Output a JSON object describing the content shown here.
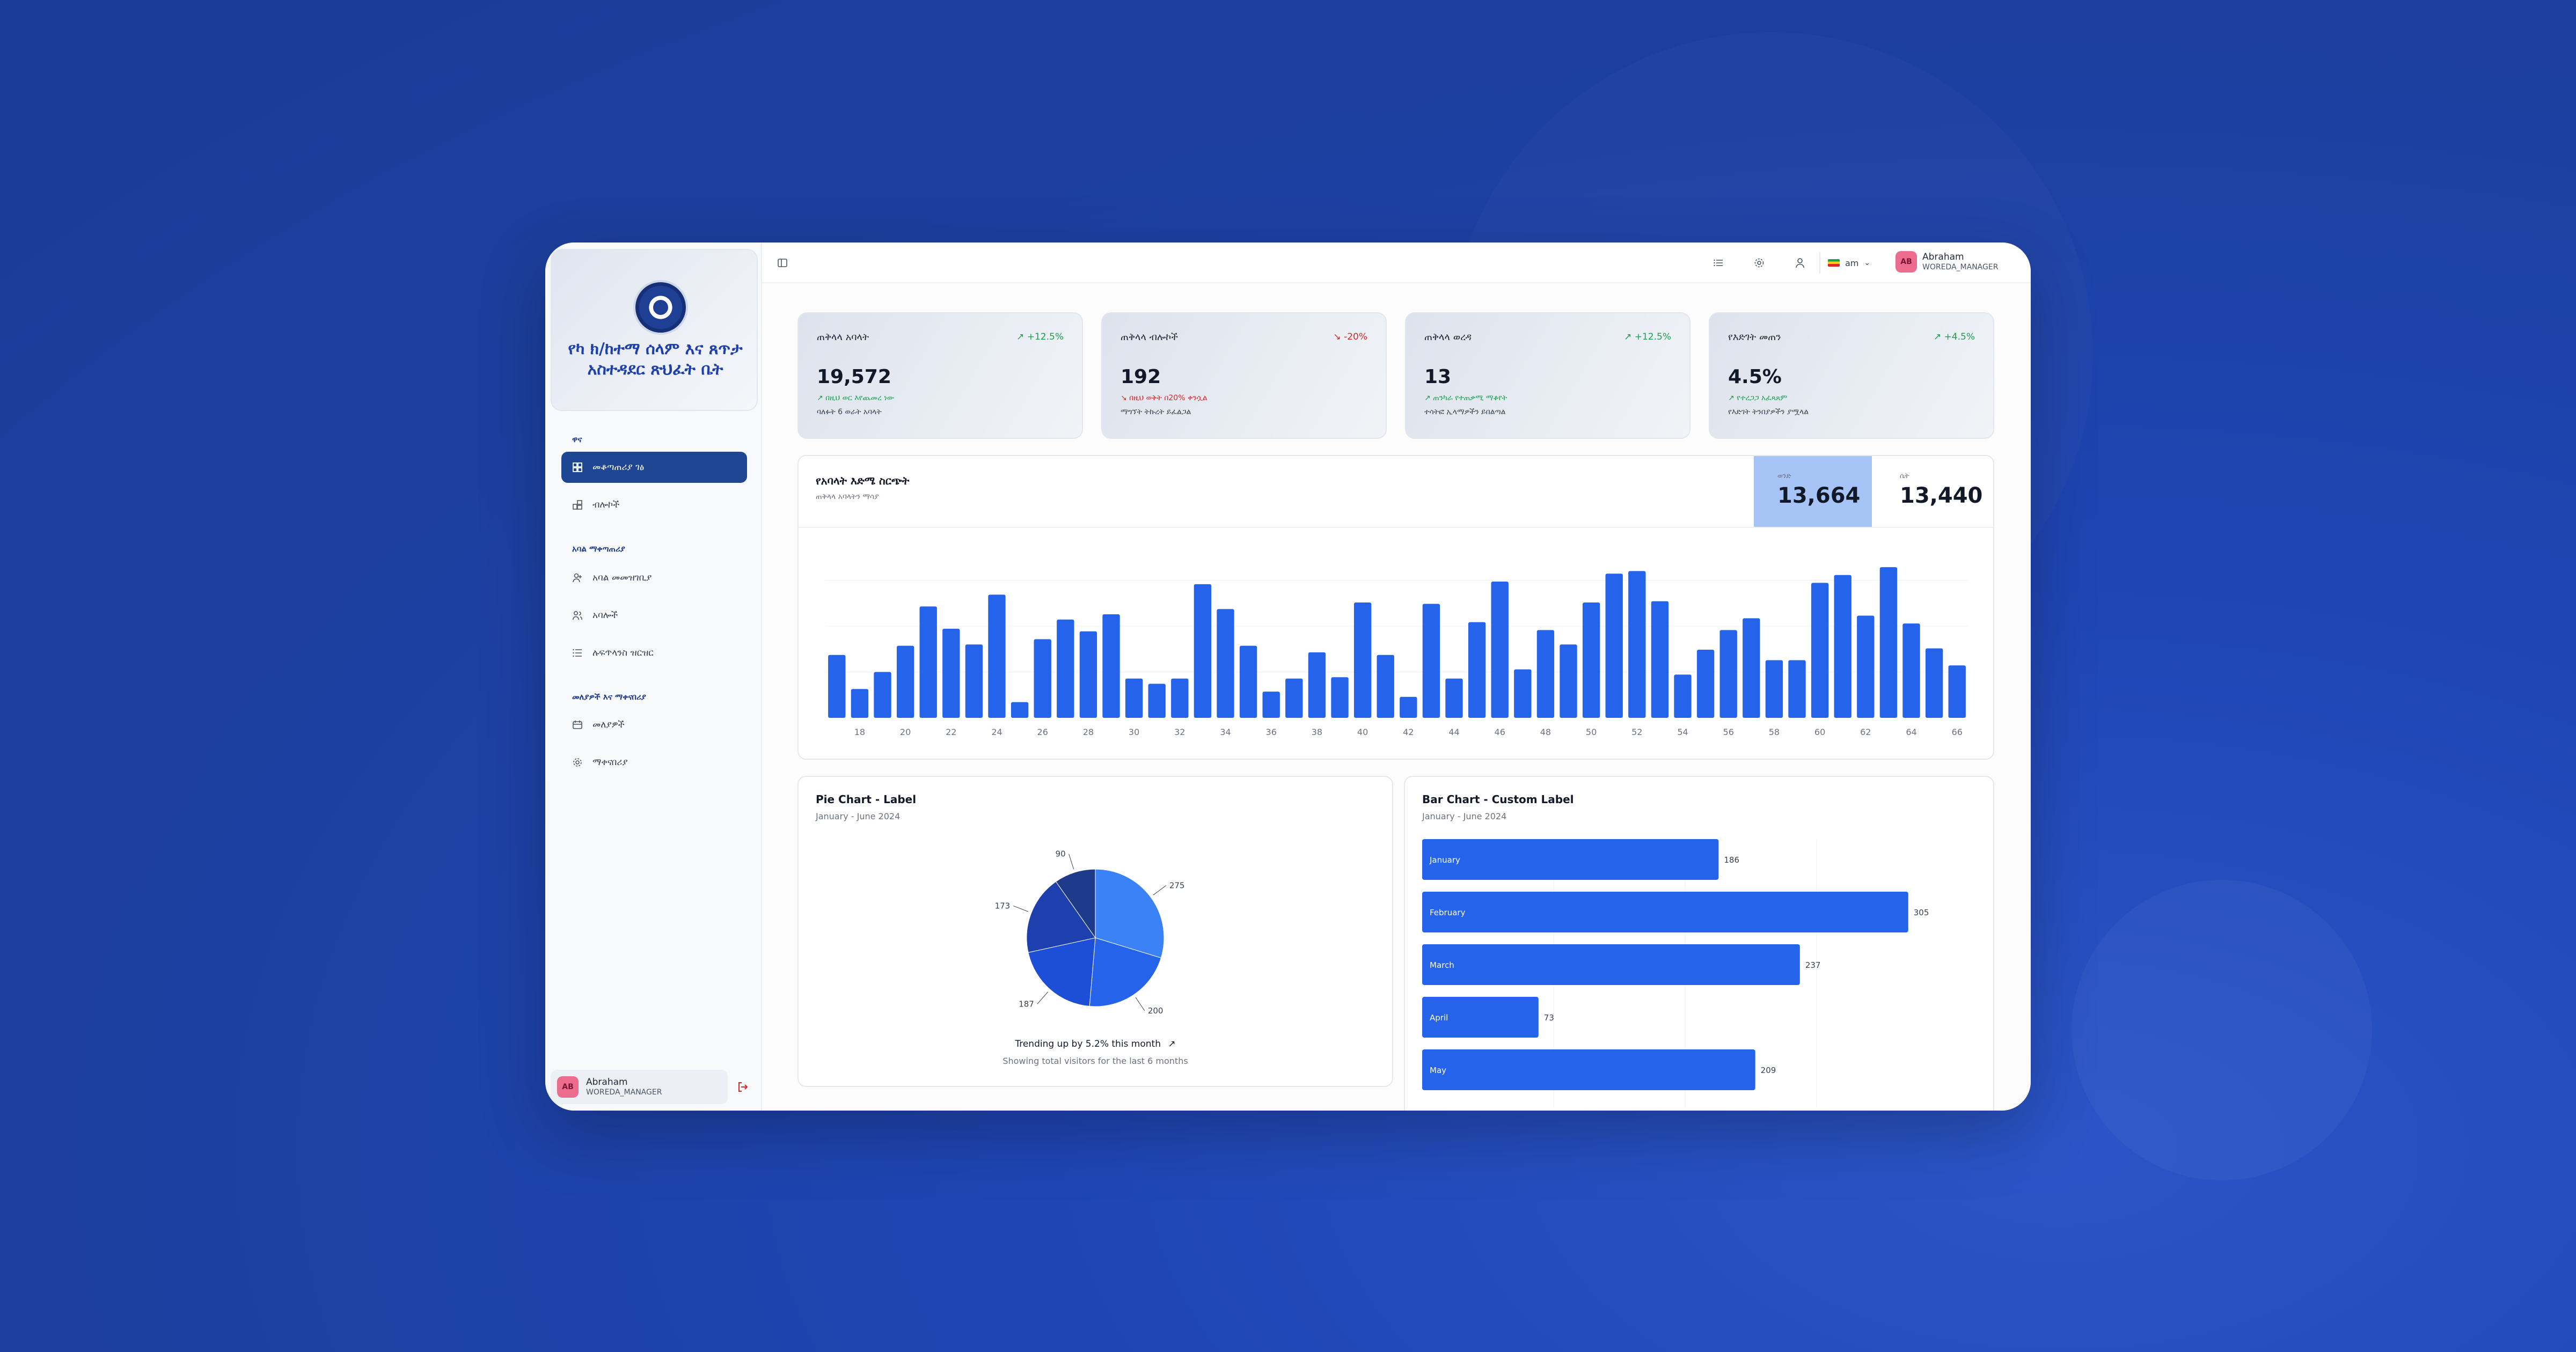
{
  "brand": {
    "title": "የካ ክ/ከተማ ሰላም እና ጸጥታ አስተዳደር ጽህፈት ቤት"
  },
  "sidebar": {
    "sections": [
      {
        "label": "ዋና"
      },
      {
        "label": "አባል ማቀጣጠሪያ"
      },
      {
        "label": "መለያዎች እና ማቀናበሪያ"
      }
    ],
    "items": [
      {
        "label": "መቆጣጠሪያ ገፅ",
        "icon": "dashboard-icon",
        "active": true
      },
      {
        "label": "ብሎኮች",
        "icon": "blocks-icon"
      },
      {
        "label": "አባል መመዝገቢያ",
        "icon": "user-plus-icon"
      },
      {
        "label": "አባሎች",
        "icon": "users-icon"
      },
      {
        "label": "ሉፍጥላንስ ዝርዝር",
        "icon": "list-icon"
      },
      {
        "label": "መለያዎች",
        "icon": "id-card-icon"
      },
      {
        "label": "ማቀናበሪያ",
        "icon": "gear-icon"
      }
    ],
    "user": {
      "initials": "AB",
      "name": "Abraham",
      "role": "WOREDA_MANAGER"
    }
  },
  "topbar": {
    "language": "am",
    "user": {
      "initials": "AB",
      "name": "Abraham",
      "role": "WOREDA_MANAGER"
    }
  },
  "kpis": [
    {
      "title": "ጠቅላላ አባላት",
      "badge": "↗ +12.5%",
      "trend": "up",
      "value": "19,572",
      "note": "↗ በዚህ ወር እየጨመረ ነው",
      "sub": "ባለፉት 6 ወራት አባላት"
    },
    {
      "title": "ጠቅላላ ብሎኮች",
      "badge": "↘ -20%",
      "trend": "down",
      "value": "192",
      "note": "↘ በዚህ ወቅት በ20% ቀንሷል",
      "sub": "ማግኘት ትኩረት ይፈልጋል"
    },
    {
      "title": "ጠቅላላ ወረዳ",
      "badge": "↗ +12.5%",
      "trend": "up",
      "value": "13",
      "note": "↗ ጠንካራ የተጠቃሚ ማቆየት",
      "sub": "ተሳትፎ ኢላማዎችን ይበልጣል"
    },
    {
      "title": "የእድገት መጠን",
      "badge": "↗ +4.5%",
      "trend": "up",
      "value": "4.5%",
      "note": "↗ የተረጋጋ አፈጻጸም",
      "sub": "የእድገት ትንበያዎችን ያሟላል"
    }
  ],
  "main_chart": {
    "title": "የአባላት እድሜ ስርጭት",
    "subtitle": "ጠቅላላ አባላትን ማሳያ",
    "toggles": [
      {
        "label": "ወንድ",
        "value": "13,664",
        "active": true
      },
      {
        "label": "ሴት",
        "value": "13,440",
        "active": false
      }
    ]
  },
  "pie_card": {
    "title": "Pie Chart - Label",
    "subtitle": "January - June 2024",
    "footer_main": "Trending up by 5.2% this month",
    "footer_sub": "Showing total visitors for the last 6 months"
  },
  "bar_card": {
    "title": "Bar Chart - Custom Label",
    "subtitle": "January - June 2024"
  },
  "colors": {
    "accent": "#2563eb",
    "nav_active": "#1e4693",
    "up": "#16a34a",
    "down": "#dc2626"
  },
  "chart_data": [
    {
      "type": "bar",
      "x": [
        17,
        18,
        19,
        20,
        21,
        22,
        23,
        24,
        25,
        26,
        27,
        28,
        29,
        30,
        31,
        32,
        33,
        34,
        35,
        36,
        37,
        38,
        39,
        40,
        41,
        42,
        43,
        44,
        45,
        46,
        47,
        48,
        49,
        50,
        51,
        52,
        53,
        54,
        55,
        56,
        57,
        58,
        59,
        60,
        61,
        62,
        63,
        64,
        65,
        66
      ],
      "values": [
        48,
        22,
        35,
        55,
        85,
        68,
        56,
        94,
        12,
        60,
        75,
        66,
        79,
        30,
        26,
        30,
        102,
        83,
        55,
        20,
        30,
        50,
        31,
        88,
        48,
        16,
        87,
        30,
        73,
        104,
        37,
        67,
        56,
        88,
        110,
        112,
        89,
        33,
        52,
        67,
        76,
        44,
        44,
        103,
        109,
        78,
        115,
        72,
        53,
        40
      ],
      "xticks": [
        18,
        20,
        22,
        24,
        26,
        28,
        30,
        32,
        34,
        36,
        38,
        40,
        42,
        44,
        46,
        48,
        50,
        52,
        54,
        56,
        58,
        60,
        62,
        64,
        66
      ],
      "ylim": [
        0,
        140
      ],
      "grid": true
    },
    {
      "type": "pie",
      "values": [
        275,
        200,
        187,
        173,
        90
      ],
      "labels": [
        "275",
        "200",
        "187",
        "173",
        "90"
      ],
      "colors": [
        "#3b82f6",
        "#2563eb",
        "#1d4ed8",
        "#1e40af",
        "#1e3a8a"
      ]
    },
    {
      "type": "bar",
      "orientation": "horizontal",
      "categories": [
        "January",
        "February",
        "March",
        "April",
        "May"
      ],
      "values": [
        186,
        305,
        237,
        73,
        209
      ],
      "xlim": [
        0,
        330
      ]
    }
  ]
}
